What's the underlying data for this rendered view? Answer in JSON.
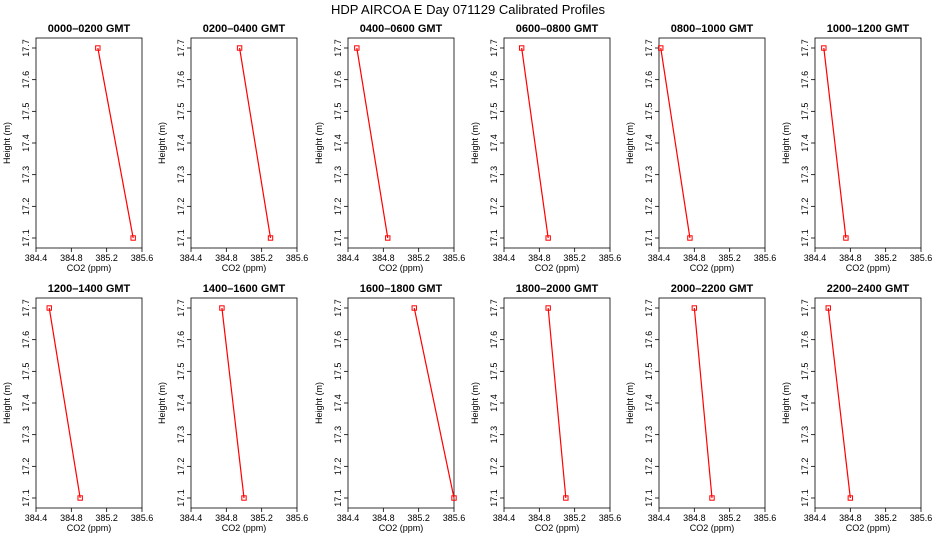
{
  "figure": {
    "title": "HDP  AIRCOA E  Day 071129  Calibrated Profiles"
  },
  "chart_data": [
    {
      "type": "line",
      "title": "0000–0200 GMT",
      "xlabel": "CO2 (ppm)",
      "ylabel": "Height (m)",
      "xlim": [
        384.4,
        385.6
      ],
      "ylim": [
        17.1,
        17.7
      ],
      "xticks": [
        "384.4",
        "384.8",
        "385.2",
        "385.6"
      ],
      "yticks": [
        "17.1",
        "17.2",
        "17.3",
        "17.4",
        "17.5",
        "17.6",
        "17.7"
      ],
      "points": [
        {
          "x": 385.1,
          "y": 17.7
        },
        {
          "x": 385.5,
          "y": 17.1
        }
      ]
    },
    {
      "type": "line",
      "title": "0200–0400 GMT",
      "xlabel": "CO2 (ppm)",
      "ylabel": "Height (m)",
      "xlim": [
        384.4,
        385.6
      ],
      "ylim": [
        17.1,
        17.7
      ],
      "xticks": [
        "384.4",
        "384.8",
        "385.2",
        "385.6"
      ],
      "yticks": [
        "17.1",
        "17.2",
        "17.3",
        "17.4",
        "17.5",
        "17.6",
        "17.7"
      ],
      "points": [
        {
          "x": 384.95,
          "y": 17.7
        },
        {
          "x": 385.3,
          "y": 17.1
        }
      ]
    },
    {
      "type": "line",
      "title": "0400–0600 GMT",
      "xlabel": "CO2 (ppm)",
      "ylabel": "Height (m)",
      "xlim": [
        384.4,
        385.6
      ],
      "ylim": [
        17.1,
        17.7
      ],
      "xticks": [
        "384.4",
        "384.8",
        "385.2",
        "385.6"
      ],
      "yticks": [
        "17.1",
        "17.2",
        "17.3",
        "17.4",
        "17.5",
        "17.6",
        "17.7"
      ],
      "points": [
        {
          "x": 384.5,
          "y": 17.7
        },
        {
          "x": 384.85,
          "y": 17.1
        }
      ]
    },
    {
      "type": "line",
      "title": "0600–0800 GMT",
      "xlabel": "CO2 (ppm)",
      "ylabel": "Height (m)",
      "xlim": [
        384.4,
        385.6
      ],
      "ylim": [
        17.1,
        17.7
      ],
      "xticks": [
        "384.4",
        "384.8",
        "385.2",
        "385.6"
      ],
      "yticks": [
        "17.1",
        "17.2",
        "17.3",
        "17.4",
        "17.5",
        "17.6",
        "17.7"
      ],
      "points": [
        {
          "x": 384.6,
          "y": 17.7
        },
        {
          "x": 384.9,
          "y": 17.1
        }
      ]
    },
    {
      "type": "line",
      "title": "0800–1000 GMT",
      "xlabel": "CO2 (ppm)",
      "ylabel": "Height (m)",
      "xlim": [
        384.4,
        385.6
      ],
      "ylim": [
        17.1,
        17.7
      ],
      "xticks": [
        "384.4",
        "384.8",
        "385.2",
        "385.6"
      ],
      "yticks": [
        "17.1",
        "17.2",
        "17.3",
        "17.4",
        "17.5",
        "17.6",
        "17.7"
      ],
      "points": [
        {
          "x": 384.42,
          "y": 17.7
        },
        {
          "x": 384.75,
          "y": 17.1
        }
      ]
    },
    {
      "type": "line",
      "title": "1000–1200 GMT",
      "xlabel": "CO2 (ppm)",
      "ylabel": "Height (m)",
      "xlim": [
        384.4,
        385.6
      ],
      "ylim": [
        17.1,
        17.7
      ],
      "xticks": [
        "384.4",
        "384.8",
        "385.2",
        "385.6"
      ],
      "yticks": [
        "17.1",
        "17.2",
        "17.3",
        "17.4",
        "17.5",
        "17.6",
        "17.7"
      ],
      "points": [
        {
          "x": 384.5,
          "y": 17.7
        },
        {
          "x": 384.75,
          "y": 17.1
        }
      ]
    },
    {
      "type": "line",
      "title": "1200–1400 GMT",
      "xlabel": "CO2 (ppm)",
      "ylabel": "Height (m)",
      "xlim": [
        384.4,
        385.6
      ],
      "ylim": [
        17.1,
        17.7
      ],
      "xticks": [
        "384.4",
        "384.8",
        "385.2",
        "385.6"
      ],
      "yticks": [
        "17.1",
        "17.2",
        "17.3",
        "17.4",
        "17.5",
        "17.6",
        "17.7"
      ],
      "points": [
        {
          "x": 384.55,
          "y": 17.7
        },
        {
          "x": 384.9,
          "y": 17.1
        }
      ]
    },
    {
      "type": "line",
      "title": "1400–1600 GMT",
      "xlabel": "CO2 (ppm)",
      "ylabel": "Height (m)",
      "xlim": [
        384.4,
        385.6
      ],
      "ylim": [
        17.1,
        17.7
      ],
      "xticks": [
        "384.4",
        "384.8",
        "385.2",
        "385.6"
      ],
      "yticks": [
        "17.1",
        "17.2",
        "17.3",
        "17.4",
        "17.5",
        "17.6",
        "17.7"
      ],
      "points": [
        {
          "x": 384.75,
          "y": 17.7
        },
        {
          "x": 385.0,
          "y": 17.1
        }
      ]
    },
    {
      "type": "line",
      "title": "1600–1800 GMT",
      "xlabel": "CO2 (ppm)",
      "ylabel": "Height (m)",
      "xlim": [
        384.4,
        385.6
      ],
      "ylim": [
        17.1,
        17.7
      ],
      "xticks": [
        "384.4",
        "384.8",
        "385.2",
        "385.6"
      ],
      "yticks": [
        "17.1",
        "17.2",
        "17.3",
        "17.4",
        "17.5",
        "17.6",
        "17.7"
      ],
      "points": [
        {
          "x": 385.15,
          "y": 17.7
        },
        {
          "x": 385.6,
          "y": 17.1
        }
      ]
    },
    {
      "type": "line",
      "title": "1800–2000 GMT",
      "xlabel": "CO2 (ppm)",
      "ylabel": "Height (m)",
      "xlim": [
        384.4,
        385.6
      ],
      "ylim": [
        17.1,
        17.7
      ],
      "xticks": [
        "384.4",
        "384.8",
        "385.2",
        "385.6"
      ],
      "yticks": [
        "17.1",
        "17.2",
        "17.3",
        "17.4",
        "17.5",
        "17.6",
        "17.7"
      ],
      "points": [
        {
          "x": 384.9,
          "y": 17.7
        },
        {
          "x": 385.1,
          "y": 17.1
        }
      ]
    },
    {
      "type": "line",
      "title": "2000–2200 GMT",
      "xlabel": "CO2 (ppm)",
      "ylabel": "Height (m)",
      "xlim": [
        384.4,
        385.6
      ],
      "ylim": [
        17.1,
        17.7
      ],
      "xticks": [
        "384.4",
        "384.8",
        "385.2",
        "385.6"
      ],
      "yticks": [
        "17.1",
        "17.2",
        "17.3",
        "17.4",
        "17.5",
        "17.6",
        "17.7"
      ],
      "points": [
        {
          "x": 384.8,
          "y": 17.7
        },
        {
          "x": 385.0,
          "y": 17.1
        }
      ]
    },
    {
      "type": "line",
      "title": "2200–2400 GMT",
      "xlabel": "CO2 (ppm)",
      "ylabel": "Height (m)",
      "xlim": [
        384.4,
        385.6
      ],
      "ylim": [
        17.1,
        17.7
      ],
      "xticks": [
        "384.4",
        "384.8",
        "385.2",
        "385.6"
      ],
      "yticks": [
        "17.1",
        "17.2",
        "17.3",
        "17.4",
        "17.5",
        "17.6",
        "17.7"
      ],
      "points": [
        {
          "x": 384.55,
          "y": 17.7
        },
        {
          "x": 384.8,
          "y": 17.1
        }
      ]
    }
  ],
  "style": {
    "line_color": "#ff0000",
    "marker_color": "#ff0000",
    "axis_color": "#000000"
  }
}
